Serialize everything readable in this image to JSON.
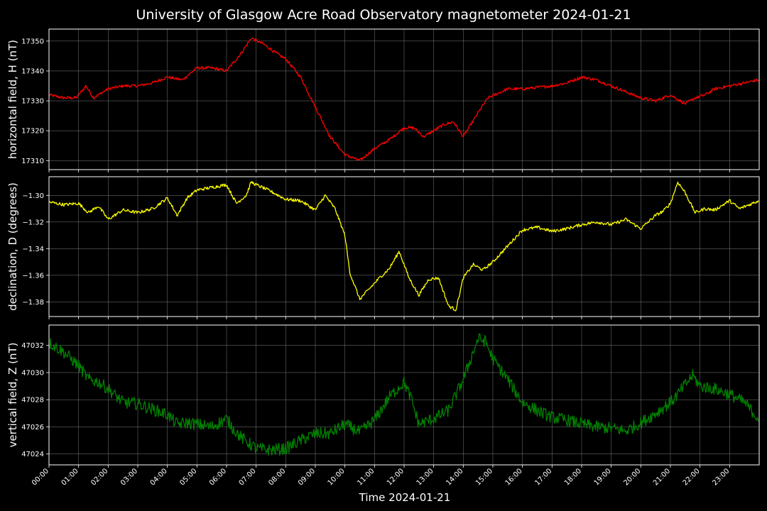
{
  "title": "University of Glasgow Acre Road Observatory magnetometer 2024-01-21",
  "xlabel": "Time 2024-01-21",
  "chart_data": [
    {
      "type": "line",
      "ylabel": "horizontal field, H (nT)",
      "color": "#ff0000",
      "noise": 0.5,
      "xlim": [
        "00:00",
        "24:00"
      ],
      "ylim": [
        17307,
        17354
      ],
      "yticks": [
        17310,
        17320,
        17330,
        17340,
        17350
      ],
      "grid": true,
      "series": [
        {
          "x": [
            "00:00",
            "00:30",
            "00:55",
            "01:15",
            "01:30",
            "02:00",
            "02:30",
            "03:00",
            "03:30",
            "04:00",
            "04:30",
            "05:00",
            "05:30",
            "06:00",
            "06:30",
            "06:50",
            "07:15",
            "07:40",
            "08:00",
            "08:30",
            "09:00",
            "09:30",
            "10:00",
            "10:30",
            "11:00",
            "11:30",
            "12:00",
            "12:20",
            "12:40",
            "13:00",
            "13:20",
            "13:40",
            "14:00",
            "14:30",
            "14:50",
            "15:30",
            "16:00",
            "17:00",
            "17:30",
            "18:00",
            "18:30",
            "19:00",
            "19:30",
            "20:00",
            "20:30",
            "21:00",
            "21:30",
            "21:50",
            "22:10",
            "22:30",
            "23:00",
            "23:30",
            "23:59"
          ],
          "values": [
            17332,
            17331,
            17331,
            17335,
            17331,
            17334,
            17335,
            17335,
            17336,
            17338,
            17337,
            17341,
            17341,
            17340,
            17346,
            17351,
            17349,
            17346,
            17344,
            17338,
            17328,
            17318,
            17312,
            17310,
            17314,
            17317,
            17321,
            17321,
            17318,
            17320,
            17322,
            17323,
            17318,
            17326,
            17331,
            17334,
            17334,
            17335,
            17336,
            17338,
            17337,
            17335,
            17333,
            17331,
            17330,
            17332,
            17329,
            17331,
            17332,
            17334,
            17335,
            17336,
            17337
          ]
        }
      ]
    },
    {
      "type": "line",
      "ylabel": "declination, D (degrees)",
      "color": "#ffff00",
      "noise": 0.0012,
      "xlim": [
        "00:00",
        "24:00"
      ],
      "ylim": [
        -1.391,
        -1.286
      ],
      "yticks": [
        -1.3,
        -1.32,
        -1.34,
        -1.36,
        -1.38
      ],
      "ytick_labels": [
        "−1.30",
        "−1.32",
        "−1.34",
        "−1.36",
        "−1.38"
      ],
      "grid": true,
      "series": [
        {
          "x": [
            "00:00",
            "00:30",
            "01:00",
            "01:20",
            "01:40",
            "02:00",
            "02:30",
            "03:00",
            "03:30",
            "04:00",
            "04:20",
            "04:40",
            "05:00",
            "05:30",
            "06:00",
            "06:20",
            "06:40",
            "06:50",
            "07:00",
            "07:30",
            "08:00",
            "08:30",
            "09:00",
            "09:20",
            "09:40",
            "10:00",
            "10:10",
            "10:30",
            "11:00",
            "11:10",
            "11:30",
            "11:50",
            "12:10",
            "12:30",
            "12:50",
            "13:10",
            "13:30",
            "13:45",
            "14:00",
            "14:20",
            "14:40",
            "15:00",
            "15:30",
            "16:00",
            "16:30",
            "17:00",
            "17:30",
            "18:00",
            "18:30",
            "19:00",
            "19:30",
            "20:00",
            "20:30",
            "20:45",
            "21:00",
            "21:15",
            "21:30",
            "21:50",
            "22:10",
            "22:30",
            "23:00",
            "23:20",
            "23:40",
            "23:59"
          ],
          "values": [
            -1.305,
            -1.307,
            -1.306,
            -1.313,
            -1.308,
            -1.318,
            -1.311,
            -1.313,
            -1.31,
            -1.302,
            -1.315,
            -1.302,
            -1.296,
            -1.294,
            -1.292,
            -1.306,
            -1.3,
            -1.29,
            -1.292,
            -1.297,
            -1.303,
            -1.304,
            -1.311,
            -1.3,
            -1.31,
            -1.33,
            -1.358,
            -1.378,
            -1.366,
            -1.362,
            -1.355,
            -1.342,
            -1.362,
            -1.375,
            -1.363,
            -1.362,
            -1.383,
            -1.386,
            -1.362,
            -1.352,
            -1.356,
            -1.35,
            -1.338,
            -1.326,
            -1.324,
            -1.327,
            -1.325,
            -1.322,
            -1.32,
            -1.322,
            -1.318,
            -1.325,
            -1.315,
            -1.312,
            -1.306,
            -1.29,
            -1.298,
            -1.313,
            -1.31,
            -1.311,
            -1.304,
            -1.31,
            -1.307,
            -1.304
          ]
        }
      ]
    },
    {
      "type": "line",
      "ylabel": "vertical field, Z (nT)",
      "color": "#008000",
      "noise": 0.45,
      "xlim": [
        "00:00",
        "24:00"
      ],
      "ylim": [
        47023.2,
        47033.5
      ],
      "yticks": [
        47024,
        47026,
        47028,
        47030,
        47032
      ],
      "grid": true,
      "series": [
        {
          "x": [
            "00:00",
            "00:30",
            "01:00",
            "01:20",
            "01:40",
            "02:00",
            "02:30",
            "03:00",
            "03:30",
            "04:00",
            "04:20",
            "04:40",
            "05:00",
            "05:30",
            "06:00",
            "06:15",
            "06:30",
            "07:00",
            "07:30",
            "08:00",
            "08:30",
            "09:00",
            "09:30",
            "10:00",
            "10:30",
            "11:00",
            "11:30",
            "12:00",
            "12:15",
            "12:30",
            "13:00",
            "13:30",
            "14:00",
            "14:30",
            "14:45",
            "15:00",
            "15:30",
            "16:00",
            "16:30",
            "17:00",
            "17:30",
            "18:00",
            "18:30",
            "19:00",
            "19:30",
            "20:00",
            "20:30",
            "21:00",
            "21:15",
            "21:30",
            "21:45",
            "22:00",
            "22:30",
            "23:00",
            "23:30",
            "23:59"
          ],
          "values": [
            47032.2,
            47031.5,
            47030.5,
            47029.5,
            47029.3,
            47028.8,
            47027.8,
            47027.7,
            47027.3,
            47026.9,
            47026.2,
            47026.3,
            47026.2,
            47026.0,
            47026.6,
            47025.8,
            47025.2,
            47024.4,
            47024.3,
            47024.4,
            47025.0,
            47025.5,
            47025.5,
            47026.2,
            47025.6,
            47026.5,
            47028.2,
            47029.3,
            47028.0,
            47026.2,
            47026.6,
            47027.2,
            47029.5,
            47032.5,
            47032.3,
            47031.0,
            47029.5,
            47027.8,
            47027.2,
            47026.7,
            47026.5,
            47026.2,
            47026.0,
            47025.9,
            47025.7,
            47026.3,
            47027.0,
            47027.8,
            47028.4,
            47029.1,
            47029.8,
            47029.0,
            47028.8,
            47028.4,
            47027.8,
            47026.6
          ]
        }
      ]
    }
  ],
  "x_ticks": [
    "00:00",
    "01:00",
    "02:00",
    "03:00",
    "04:00",
    "05:00",
    "06:00",
    "07:00",
    "08:00",
    "09:00",
    "10:00",
    "11:00",
    "12:00",
    "13:00",
    "14:00",
    "15:00",
    "16:00",
    "17:00",
    "18:00",
    "19:00",
    "20:00",
    "21:00",
    "22:00",
    "23:00"
  ],
  "colors": {
    "background": "#000000",
    "axis": "#ffffff",
    "grid": "#808080"
  }
}
